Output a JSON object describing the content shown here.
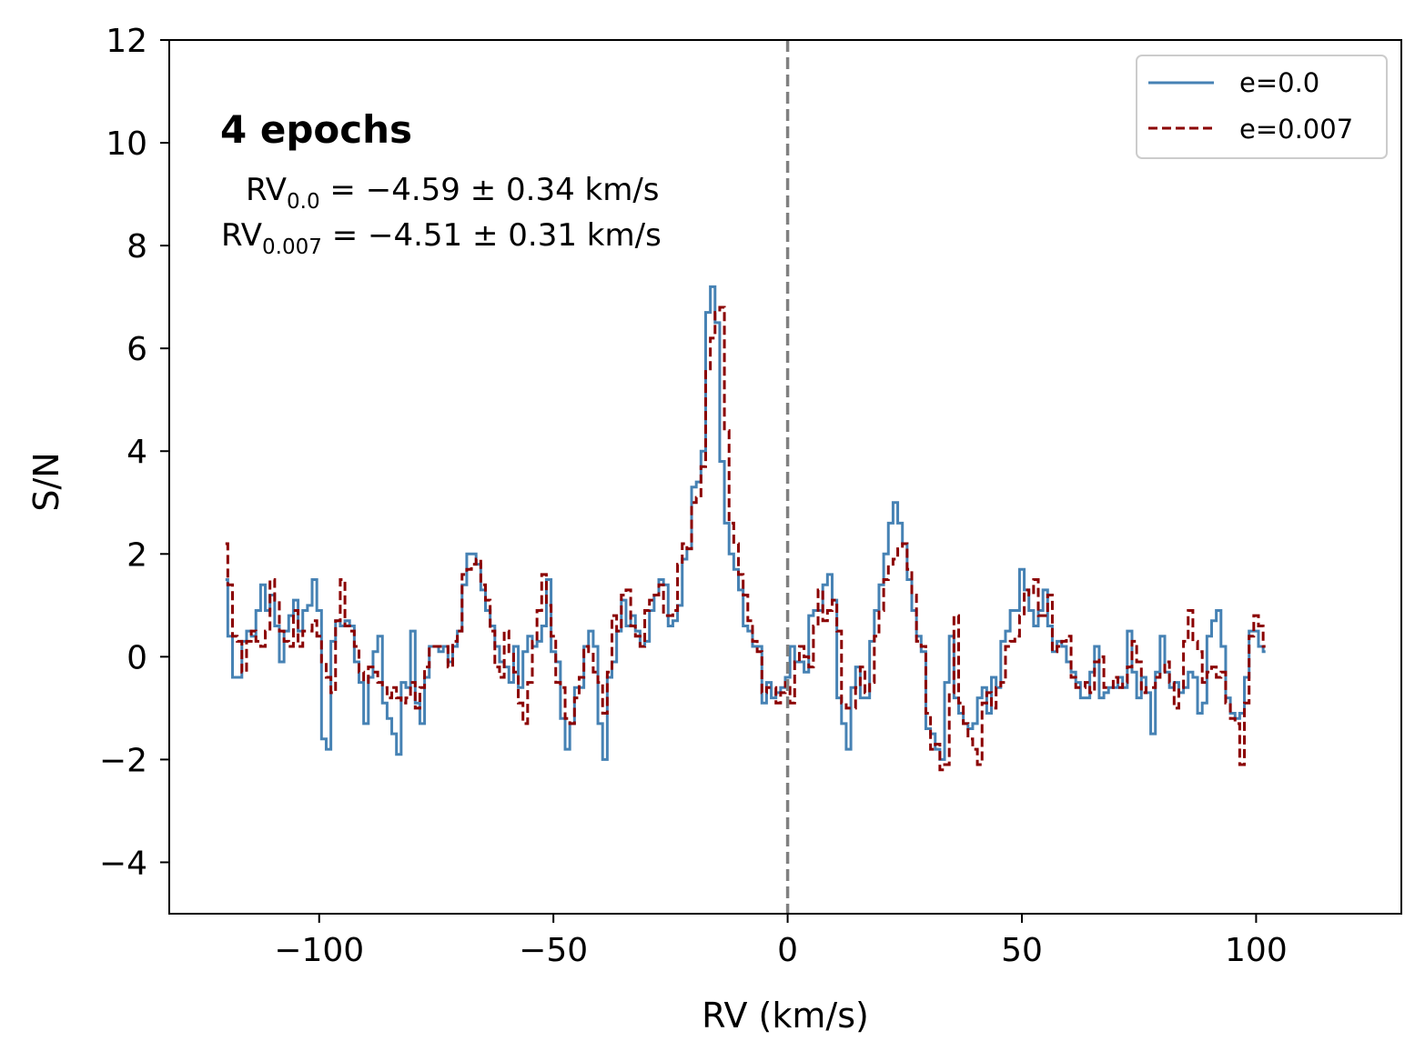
{
  "chart_data": {
    "type": "line",
    "xlabel": "RV (km/s)",
    "ylabel": "S/N",
    "xlim": [
      -132,
      131
    ],
    "ylim": [
      -5,
      12
    ],
    "xticks": [
      -100,
      -50,
      0,
      50,
      100
    ],
    "yticks": [
      -4,
      -2,
      0,
      2,
      4,
      6,
      8,
      10,
      12
    ],
    "xtick_labels": [
      "−100",
      "−50",
      "0",
      "50",
      "100"
    ],
    "ytick_labels": [
      "−4",
      "−2",
      "0",
      "2",
      "4",
      "6",
      "8",
      "10",
      "12"
    ],
    "grid": false,
    "legend_position": "top-right",
    "reference_line": {
      "x": 0,
      "style": "dashed",
      "color": "#808080"
    },
    "annotation": {
      "title": "4 epochs",
      "line1": {
        "prefix": "RV",
        "sub": "0.0",
        "suffix": " = −4.59 ± 0.34 km/s"
      },
      "line2": {
        "prefix": "RV",
        "sub": "0.007",
        "suffix": " = −4.51 ± 0.31 km/s"
      }
    },
    "x_start": -120,
    "x_step": 1,
    "series": [
      {
        "name": "e=0.0",
        "color": "#4682b4",
        "dash": "solid",
        "values": [
          1.5,
          0.4,
          -0.4,
          -0.4,
          0.3,
          0.5,
          0.4,
          0.9,
          1.4,
          0.9,
          1.2,
          0.6,
          -0.1,
          0.5,
          0.8,
          1.1,
          0.5,
          0.9,
          1.0,
          1.5,
          0.9,
          -1.6,
          -1.8,
          0.3,
          0.7,
          0.6,
          0.7,
          0.6,
          -0.1,
          -0.5,
          -1.3,
          -0.4,
          0.1,
          0.4,
          -0.9,
          -1.2,
          -1.5,
          -1.9,
          -0.5,
          -0.6,
          0.5,
          -0.9,
          -1.3,
          -0.4,
          0.2,
          0.2,
          0.1,
          0.2,
          -0.1,
          0.2,
          0.5,
          1.4,
          2.0,
          2.0,
          1.8,
          1.3,
          0.9,
          0.6,
          0.2,
          -0.1,
          -0.2,
          -0.5,
          0.2,
          -0.6,
          0.1,
          0.4,
          0.2,
          0.3,
          0.6,
          1.5,
          0.1,
          -0.1,
          -1.2,
          -1.8,
          -1.3,
          -0.6,
          -0.6,
          0.2,
          0.5,
          0.2,
          -1.3,
          -2.0,
          -0.4,
          -0.1,
          0.5,
          1.1,
          0.6,
          0.8,
          0.5,
          0.2,
          0.3,
          0.9,
          1.2,
          1.5,
          1.4,
          0.6,
          0.7,
          1.0,
          1.9,
          2.1,
          3.3,
          3.4,
          4.0,
          6.7,
          7.2,
          6.5,
          3.8,
          2.6,
          2.0,
          1.7,
          1.3,
          0.6,
          0.5,
          0.2,
          0.2,
          -0.9,
          -0.5,
          -0.8,
          -0.7,
          -0.6,
          -0.4,
          0.2,
          -0.1,
          -0.1,
          -0.3,
          0.8,
          0.9,
          0.9,
          1.4,
          1.6,
          1.1,
          -0.8,
          -1.3,
          -1.8,
          -0.6,
          -0.2,
          -0.8,
          -0.8,
          0.3,
          0.9,
          1.4,
          2.0,
          2.6,
          3.0,
          2.6,
          2.2,
          1.5,
          0.9,
          0.4,
          0.1,
          -1.4,
          -1.5,
          -1.8,
          -2.0,
          -0.5,
          0.4,
          -0.8,
          -1.1,
          -1.3,
          -1.4,
          -1.3,
          -0.8,
          -0.6,
          -1.1,
          -0.4,
          -0.6,
          0.3,
          0.5,
          0.9,
          0.9,
          1.7,
          1.3,
          0.9,
          0.6,
          0.9,
          1.3,
          0.6,
          0.1,
          0.3,
          0.2,
          -0.1,
          -0.3,
          -0.5,
          -0.8,
          -0.8,
          -0.3,
          0.2,
          -0.8,
          -0.7,
          -0.6,
          -0.6,
          -0.4,
          -0.6,
          0.5,
          -0.3,
          -0.8,
          -0.4,
          -0.7,
          -1.5,
          -0.3,
          0.4,
          -0.3,
          -0.6,
          -0.5,
          -0.7,
          -0.6,
          -0.3,
          -0.4,
          -1.1,
          -0.9,
          0.4,
          0.7,
          0.9,
          0.2,
          -0.8,
          -1.1,
          -1.2,
          -1.1,
          -0.4,
          0.5,
          0.5,
          0.2,
          0.1
        ]
      },
      {
        "name": "e=0.007",
        "color": "#8b0000",
        "dash": "dashed",
        "values": [
          2.2,
          1.4,
          0.4,
          0.3,
          -0.3,
          0.3,
          0.5,
          0.3,
          0.2,
          0.5,
          1.5,
          1.1,
          0.5,
          0.3,
          0.2,
          0.9,
          0.2,
          0.5,
          0.5,
          0.7,
          0.4,
          -0.1,
          -0.4,
          -0.7,
          0.7,
          1.5,
          0.6,
          0.5,
          0.2,
          -0.3,
          -0.5,
          -0.2,
          -0.3,
          -0.5,
          -0.6,
          -0.8,
          -0.6,
          -0.8,
          -0.9,
          -0.8,
          -0.5,
          -1.0,
          -0.6,
          -0.2,
          0.2,
          0.2,
          0.2,
          0.2,
          -0.2,
          0.3,
          0.5,
          1.6,
          1.7,
          1.8,
          1.9,
          1.4,
          1.1,
          0.5,
          -0.2,
          -0.4,
          0.5,
          0.1,
          -0.3,
          -0.9,
          -1.3,
          -0.5,
          0.3,
          0.9,
          1.6,
          1.0,
          0.4,
          -0.5,
          -0.6,
          -1.2,
          -1.3,
          -0.8,
          -0.4,
          0.2,
          0.1,
          -0.3,
          -0.5,
          -1.1,
          -0.3,
          0.8,
          0.5,
          1.2,
          1.3,
          0.6,
          0.4,
          0.2,
          0.9,
          1.1,
          1.2,
          1.4,
          0.8,
          0.8,
          0.9,
          1.8,
          2.2,
          2.1,
          3.0,
          3.1,
          3.7,
          5.6,
          6.2,
          6.7,
          6.8,
          4.4,
          2.6,
          2.2,
          1.6,
          1.2,
          0.7,
          0.3,
          0.1,
          -0.7,
          -0.6,
          -0.6,
          -0.9,
          -0.7,
          -0.5,
          -0.9,
          -0.1,
          0.2,
          0.0,
          -0.2,
          0.6,
          1.3,
          0.7,
          0.9,
          1.1,
          0.5,
          -0.9,
          -1.0,
          -1.0,
          -0.6,
          -0.2,
          -0.7,
          -0.5,
          0.4,
          0.9,
          1.5,
          1.8,
          1.9,
          2.1,
          2.2,
          1.7,
          1.2,
          0.3,
          0.2,
          -1.1,
          -1.8,
          -1.7,
          -2.2,
          -2.1,
          -0.7,
          0.8,
          -0.9,
          -1.3,
          -1.6,
          -1.8,
          -2.1,
          -0.9,
          -0.7,
          -1.0,
          -0.6,
          -0.5,
          0.2,
          0.3,
          0.4,
          0.8,
          1.3,
          1.2,
          1.5,
          0.8,
          0.8,
          1.2,
          0.1,
          0.2,
          0.3,
          0.4,
          -0.4,
          -0.6,
          -0.6,
          -0.5,
          -0.7,
          -0.1,
          0.0,
          -0.6,
          -0.6,
          -0.4,
          -0.6,
          -0.5,
          -0.2,
          0.3,
          -0.1,
          -0.7,
          -0.6,
          -0.6,
          -0.4,
          -0.3,
          -0.1,
          -0.5,
          -1.0,
          -0.6,
          0.3,
          0.9,
          0.3,
          0.1,
          -0.5,
          -0.3,
          -0.2,
          -0.4,
          -0.3,
          -0.9,
          -1.2,
          -1.3,
          -2.1,
          -0.9,
          0.4,
          0.8,
          0.6,
          0.2
        ]
      }
    ]
  }
}
